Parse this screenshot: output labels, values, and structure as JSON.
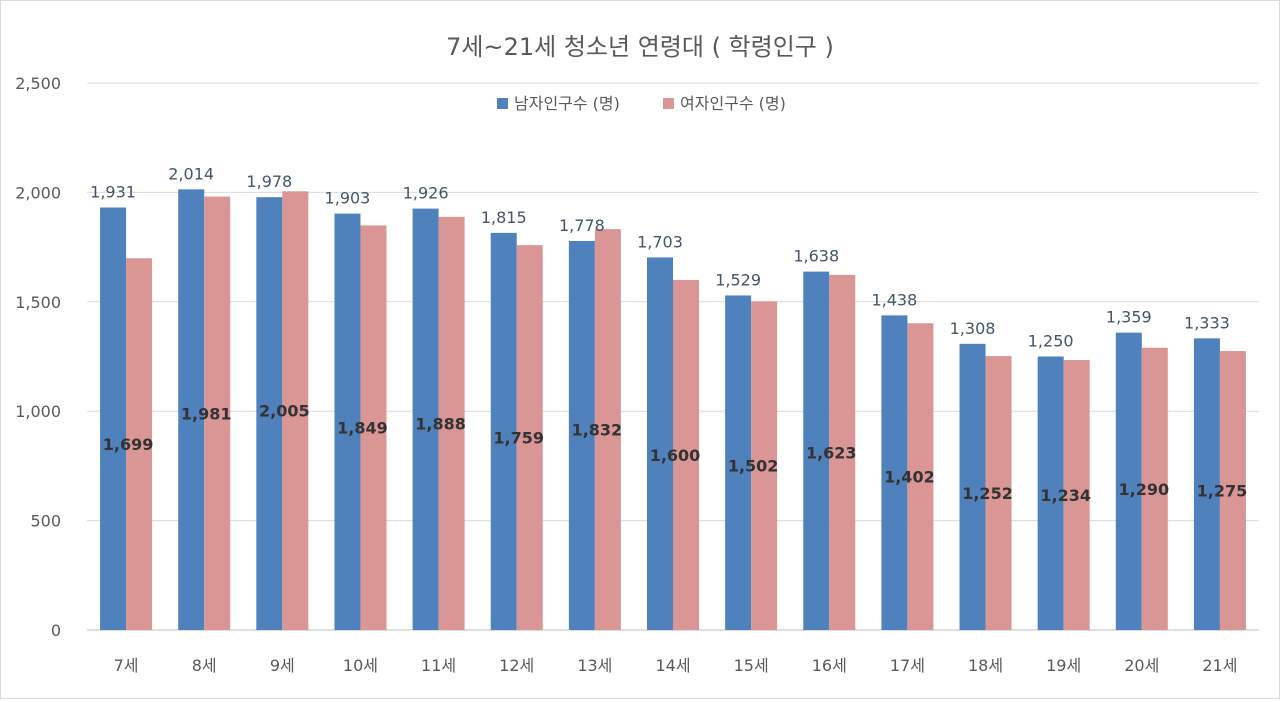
{
  "chart_data": {
    "type": "bar",
    "title": "7세~21세 청소년 연령대 ( 학령인구 )",
    "xlabel": "",
    "ylabel": "",
    "categories": [
      "7세",
      "8세",
      "9세",
      "10세",
      "11세",
      "12세",
      "13세",
      "14세",
      "15세",
      "16세",
      "17세",
      "18세",
      "19세",
      "20세",
      "21세"
    ],
    "series": [
      {
        "name": "남자인구수 (명)",
        "color": "#4f81bd",
        "values": [
          1931,
          2014,
          1978,
          1903,
          1926,
          1815,
          1778,
          1703,
          1529,
          1638,
          1438,
          1308,
          1250,
          1359,
          1333
        ]
      },
      {
        "name": "여자인구수 (명)",
        "color": "#d99694",
        "values": [
          1699,
          1981,
          2005,
          1849,
          1888,
          1759,
          1832,
          1600,
          1502,
          1623,
          1402,
          1252,
          1234,
          1290,
          1275
        ]
      }
    ],
    "ylim": [
      0,
      2500
    ],
    "yticks": [
      0,
      500,
      1000,
      1500,
      2000,
      2500
    ],
    "ytick_labels": [
      "0",
      "500",
      "1,000",
      "1,500",
      "2,000",
      "2,500"
    ],
    "grid": true,
    "legend_position": "top-center"
  }
}
